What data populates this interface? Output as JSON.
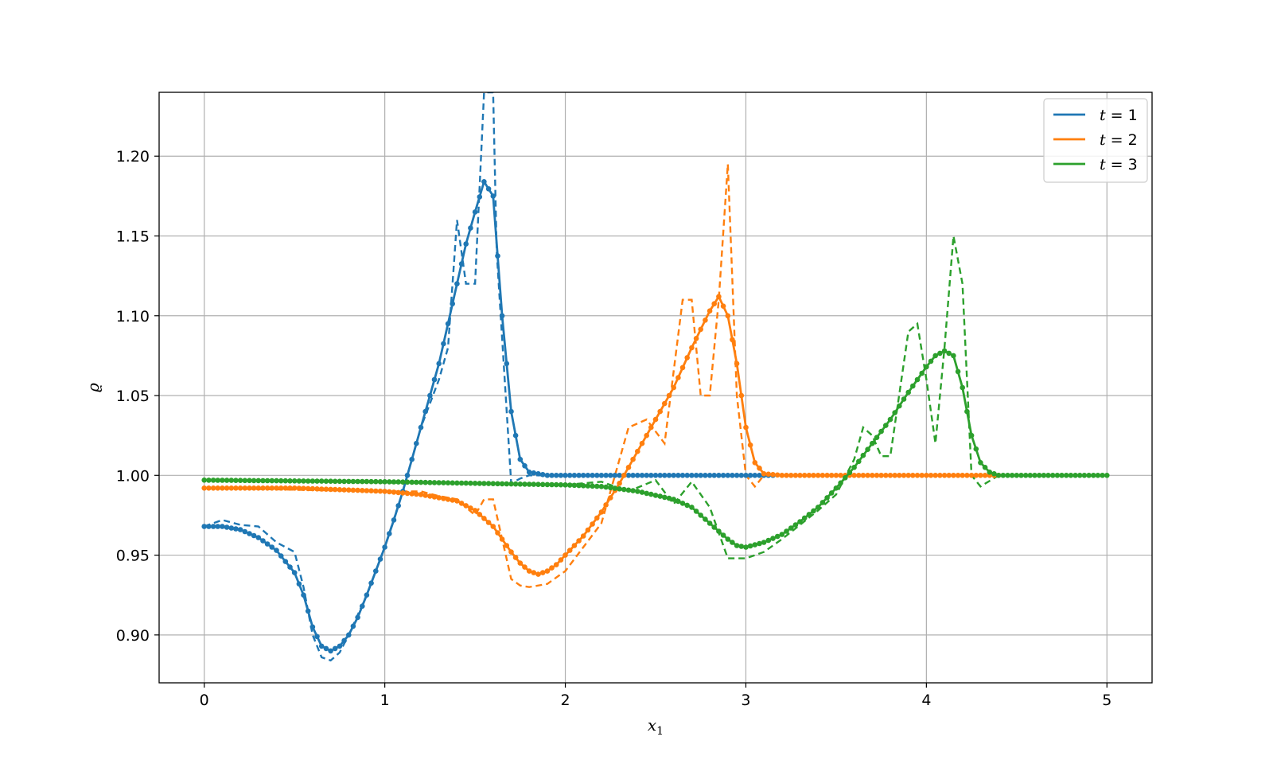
{
  "chart_data": {
    "type": "line",
    "title": "",
    "xlabel": "x",
    "xlabel_sub": "1",
    "ylabel": "ϱ",
    "xlim": [
      -0.25,
      5.25
    ],
    "ylim": [
      0.87,
      1.24
    ],
    "xticks": [
      0,
      1,
      2,
      3,
      4,
      5
    ],
    "xtick_labels": [
      "0",
      "1",
      "2",
      "3",
      "4",
      "5"
    ],
    "yticks": [
      0.9,
      0.95,
      1.0,
      1.05,
      1.1,
      1.15,
      1.2
    ],
    "ytick_labels": [
      "0.90",
      "0.95",
      "1.00",
      "1.05",
      "1.10",
      "1.15",
      "1.20"
    ],
    "grid": true,
    "legend_position": "top-right",
    "series": [
      {
        "name": "t = 1",
        "name_var": "t",
        "name_rest": " = 1",
        "color": "#1f77b4",
        "style": "solid-markers",
        "points": [
          [
            0,
            0.968
          ],
          [
            0.1,
            0.968
          ],
          [
            0.2,
            0.966
          ],
          [
            0.3,
            0.961
          ],
          [
            0.4,
            0.953
          ],
          [
            0.5,
            0.939
          ],
          [
            0.55,
            0.925
          ],
          [
            0.6,
            0.905
          ],
          [
            0.65,
            0.893
          ],
          [
            0.7,
            0.89
          ],
          [
            0.75,
            0.893
          ],
          [
            0.8,
            0.9
          ],
          [
            0.85,
            0.911
          ],
          [
            0.9,
            0.925
          ],
          [
            0.95,
            0.94
          ],
          [
            1.0,
            0.955
          ],
          [
            1.05,
            0.972
          ],
          [
            1.1,
            0.99
          ],
          [
            1.15,
            1.01
          ],
          [
            1.2,
            1.03
          ],
          [
            1.25,
            1.05
          ],
          [
            1.3,
            1.07
          ],
          [
            1.35,
            1.095
          ],
          [
            1.4,
            1.12
          ],
          [
            1.45,
            1.145
          ],
          [
            1.5,
            1.165
          ],
          [
            1.55,
            1.184
          ],
          [
            1.6,
            1.175
          ],
          [
            1.65,
            1.1
          ],
          [
            1.7,
            1.04
          ],
          [
            1.75,
            1.01
          ],
          [
            1.8,
            1.002
          ],
          [
            1.9,
            1.0
          ],
          [
            2.0,
            1.0
          ],
          [
            3.15,
            1.0
          ]
        ]
      },
      {
        "name": "t = 2",
        "name_var": "t",
        "name_rest": " = 2",
        "color": "#ff7f0e",
        "style": "solid-markers",
        "points": [
          [
            0,
            0.992
          ],
          [
            0.5,
            0.992
          ],
          [
            1.0,
            0.99
          ],
          [
            1.2,
            0.988
          ],
          [
            1.4,
            0.984
          ],
          [
            1.5,
            0.978
          ],
          [
            1.6,
            0.968
          ],
          [
            1.7,
            0.952
          ],
          [
            1.75,
            0.945
          ],
          [
            1.8,
            0.94
          ],
          [
            1.85,
            0.938
          ],
          [
            1.9,
            0.94
          ],
          [
            1.95,
            0.944
          ],
          [
            2.0,
            0.95
          ],
          [
            2.1,
            0.962
          ],
          [
            2.2,
            0.977
          ],
          [
            2.3,
            0.995
          ],
          [
            2.4,
            1.015
          ],
          [
            2.5,
            1.035
          ],
          [
            2.6,
            1.055
          ],
          [
            2.7,
            1.08
          ],
          [
            2.8,
            1.103
          ],
          [
            2.85,
            1.112
          ],
          [
            2.9,
            1.1
          ],
          [
            2.95,
            1.07
          ],
          [
            3.0,
            1.03
          ],
          [
            3.05,
            1.008
          ],
          [
            3.1,
            1.001
          ],
          [
            3.2,
            1.0
          ],
          [
            4.4,
            1.0
          ]
        ]
      },
      {
        "name": "t = 3",
        "name_var": "t",
        "name_rest": " = 3",
        "color": "#2ca02c",
        "style": "solid-markers",
        "points": [
          [
            0,
            0.997
          ],
          [
            1.0,
            0.996
          ],
          [
            2.0,
            0.994
          ],
          [
            2.2,
            0.993
          ],
          [
            2.4,
            0.99
          ],
          [
            2.6,
            0.985
          ],
          [
            2.7,
            0.98
          ],
          [
            2.8,
            0.97
          ],
          [
            2.9,
            0.96
          ],
          [
            2.95,
            0.956
          ],
          [
            3.0,
            0.955
          ],
          [
            3.1,
            0.958
          ],
          [
            3.2,
            0.963
          ],
          [
            3.3,
            0.971
          ],
          [
            3.4,
            0.98
          ],
          [
            3.5,
            0.992
          ],
          [
            3.6,
            1.005
          ],
          [
            3.7,
            1.02
          ],
          [
            3.8,
            1.035
          ],
          [
            3.9,
            1.052
          ],
          [
            4.0,
            1.068
          ],
          [
            4.05,
            1.075
          ],
          [
            4.1,
            1.078
          ],
          [
            4.15,
            1.075
          ],
          [
            4.2,
            1.055
          ],
          [
            4.25,
            1.025
          ],
          [
            4.3,
            1.008
          ],
          [
            4.35,
            1.002
          ],
          [
            4.4,
            1.0
          ],
          [
            5.0,
            1.0
          ]
        ]
      },
      {
        "name": "",
        "color": "#1f77b4",
        "style": "dashed",
        "points": [
          [
            0,
            0.968
          ],
          [
            0.1,
            0.972
          ],
          [
            0.2,
            0.969
          ],
          [
            0.3,
            0.968
          ],
          [
            0.4,
            0.958
          ],
          [
            0.5,
            0.952
          ],
          [
            0.55,
            0.93
          ],
          [
            0.6,
            0.9
          ],
          [
            0.65,
            0.886
          ],
          [
            0.7,
            0.884
          ],
          [
            0.75,
            0.889
          ],
          [
            0.8,
            0.9
          ],
          [
            0.9,
            0.925
          ],
          [
            1.0,
            0.955
          ],
          [
            1.1,
            0.99
          ],
          [
            1.2,
            1.03
          ],
          [
            1.3,
            1.06
          ],
          [
            1.35,
            1.08
          ],
          [
            1.4,
            1.16
          ],
          [
            1.45,
            1.12
          ],
          [
            1.5,
            1.12
          ],
          [
            1.55,
            1.24
          ],
          [
            1.6,
            1.24
          ],
          [
            1.62,
            1.14
          ],
          [
            1.7,
            0.995
          ],
          [
            1.75,
            0.998
          ],
          [
            1.8,
            1.0
          ],
          [
            3.1,
            1.0
          ]
        ]
      },
      {
        "name": "",
        "color": "#ff7f0e",
        "style": "dashed",
        "points": [
          [
            0,
            0.992
          ],
          [
            1.0,
            0.99
          ],
          [
            1.2,
            0.99
          ],
          [
            1.3,
            0.987
          ],
          [
            1.4,
            0.985
          ],
          [
            1.5,
            0.975
          ],
          [
            1.55,
            0.985
          ],
          [
            1.6,
            0.985
          ],
          [
            1.7,
            0.935
          ],
          [
            1.75,
            0.931
          ],
          [
            1.8,
            0.93
          ],
          [
            1.9,
            0.932
          ],
          [
            2.0,
            0.94
          ],
          [
            2.2,
            0.97
          ],
          [
            2.35,
            1.03
          ],
          [
            2.45,
            1.035
          ],
          [
            2.55,
            1.02
          ],
          [
            2.65,
            1.11
          ],
          [
            2.7,
            1.11
          ],
          [
            2.75,
            1.05
          ],
          [
            2.8,
            1.05
          ],
          [
            2.85,
            1.11
          ],
          [
            2.9,
            1.195
          ],
          [
            2.95,
            1.05
          ],
          [
            3.0,
            1.0
          ],
          [
            3.05,
            0.993
          ],
          [
            3.1,
            1.0
          ],
          [
            4.4,
            1.0
          ]
        ]
      },
      {
        "name": "",
        "color": "#2ca02c",
        "style": "dashed",
        "points": [
          [
            0,
            0.997
          ],
          [
            2.0,
            0.994
          ],
          [
            2.2,
            0.996
          ],
          [
            2.35,
            0.99
          ],
          [
            2.5,
            0.997
          ],
          [
            2.6,
            0.982
          ],
          [
            2.7,
            0.996
          ],
          [
            2.8,
            0.98
          ],
          [
            2.9,
            0.948
          ],
          [
            3.0,
            0.948
          ],
          [
            3.1,
            0.952
          ],
          [
            3.2,
            0.96
          ],
          [
            3.4,
            0.978
          ],
          [
            3.5,
            0.988
          ],
          [
            3.6,
            1.01
          ],
          [
            3.65,
            1.03
          ],
          [
            3.7,
            1.025
          ],
          [
            3.75,
            1.012
          ],
          [
            3.8,
            1.012
          ],
          [
            3.9,
            1.09
          ],
          [
            3.95,
            1.095
          ],
          [
            4.0,
            1.06
          ],
          [
            4.05,
            1.02
          ],
          [
            4.1,
            1.08
          ],
          [
            4.15,
            1.15
          ],
          [
            4.2,
            1.12
          ],
          [
            4.25,
            1.0
          ],
          [
            4.3,
            0.993
          ],
          [
            4.4,
            1.0
          ],
          [
            5.0,
            1.0
          ]
        ]
      }
    ]
  }
}
